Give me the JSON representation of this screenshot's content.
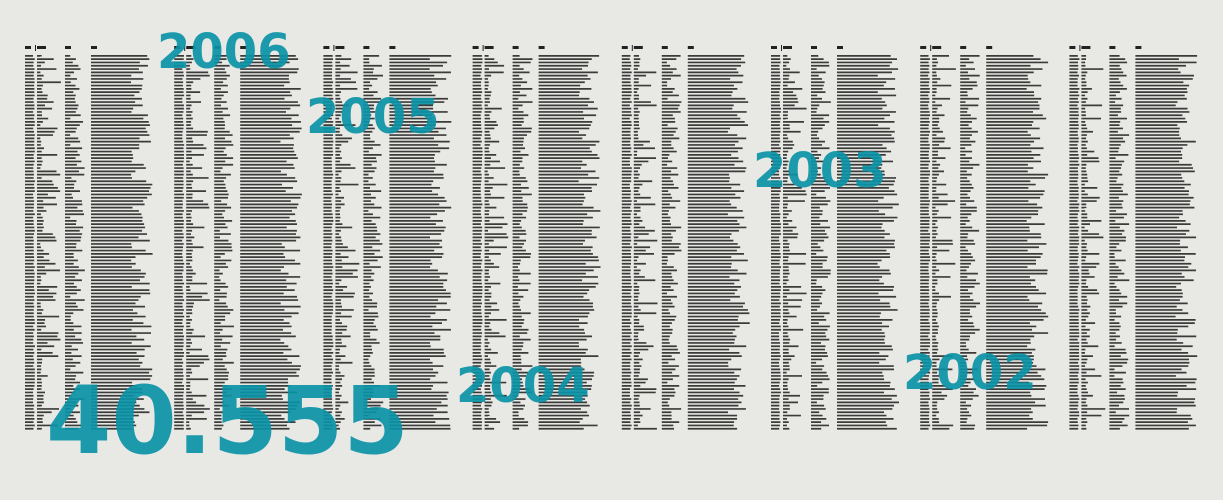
{
  "overlays": [
    "2006",
    "2005",
    "2003",
    "2004",
    "2002"
  ],
  "total": "40.555"
}
